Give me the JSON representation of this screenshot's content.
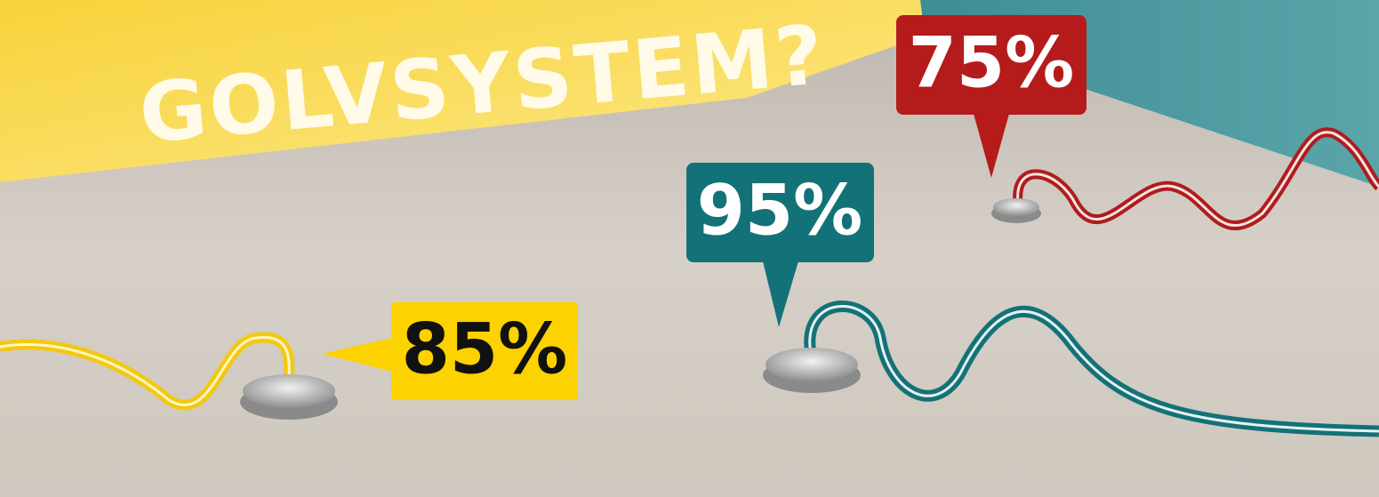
{
  "heading": {
    "text": "GOLVSYSTEM?"
  },
  "callouts": [
    {
      "label": "75%"
    },
    {
      "label": "95%"
    },
    {
      "label": "85%"
    }
  ]
}
